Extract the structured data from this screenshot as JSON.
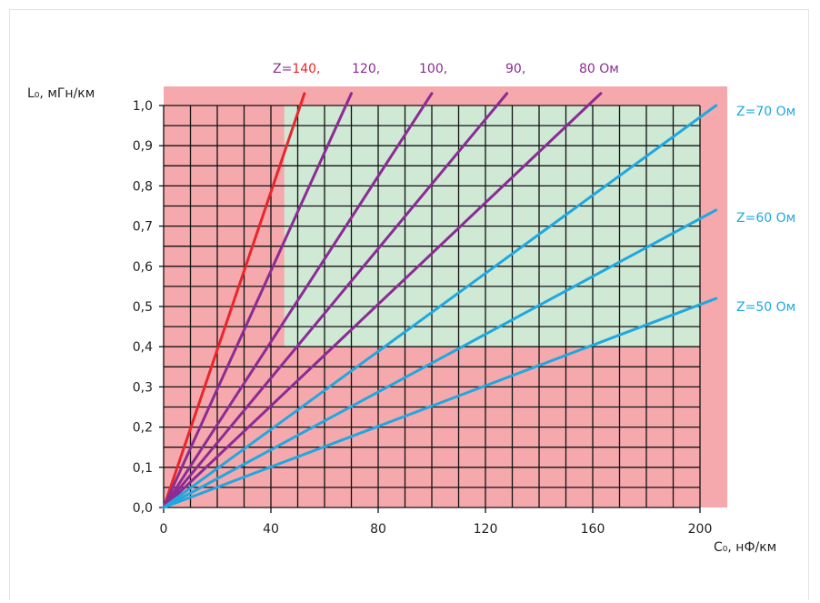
{
  "chart_data": {
    "type": "line",
    "title": "",
    "xlabel": "C₀, нФ/км",
    "ylabel": "L₀, мГн/км",
    "xlim": [
      0,
      210
    ],
    "ylim": [
      0,
      1.0
    ],
    "x_ticks": [
      {
        "value": 0,
        "label": "0"
      },
      {
        "value": 40,
        "label": "40"
      },
      {
        "value": 80,
        "label": "80"
      },
      {
        "value": 120,
        "label": "120"
      },
      {
        "value": 160,
        "label": "160"
      },
      {
        "value": 200,
        "label": "200"
      }
    ],
    "y_ticks": [
      {
        "value": 0.0,
        "label": "0,0"
      },
      {
        "value": 0.1,
        "label": "0,1"
      },
      {
        "value": 0.2,
        "label": "0,2"
      },
      {
        "value": 0.3,
        "label": "0,3"
      },
      {
        "value": 0.4,
        "label": "0,4"
      },
      {
        "value": 0.5,
        "label": "0,5"
      },
      {
        "value": 0.6,
        "label": "0,6"
      },
      {
        "value": 0.7,
        "label": "0,7"
      },
      {
        "value": 0.8,
        "label": "0,8"
      },
      {
        "value": 0.9,
        "label": "0,9"
      },
      {
        "value": 1.0,
        "label": "1,0"
      }
    ],
    "grid": true,
    "grid_step": {
      "x": 10,
      "y": 0.05
    },
    "background_color": "#f6a9ad",
    "highlight_region": {
      "x": [
        45,
        200
      ],
      "y": [
        0.4,
        1.0
      ],
      "color": "#cfe9d5"
    },
    "series": [
      {
        "name": "Z=140,",
        "x": [
          0,
          52.5
        ],
        "y": [
          0,
          1.03
        ],
        "color": "#e8262c",
        "label_parts": [
          {
            "text": "Z=",
            "color": "#8b2c94"
          },
          {
            "text": "140,",
            "color": "#e8262c"
          }
        ]
      },
      {
        "name": "120,",
        "x": [
          0,
          70
        ],
        "y": [
          0,
          1.03
        ],
        "color": "#8b2c94",
        "label_parts": [
          {
            "text": "120,",
            "color": "#8b2c94"
          }
        ]
      },
      {
        "name": "100,",
        "x": [
          0,
          100
        ],
        "y": [
          0,
          1.03
        ],
        "color": "#8b2c94",
        "label_parts": [
          {
            "text": "100,",
            "color": "#8b2c94"
          }
        ]
      },
      {
        "name": "90,",
        "x": [
          0,
          128
        ],
        "y": [
          0,
          1.03
        ],
        "color": "#8b2c94",
        "label_parts": [
          {
            "text": "90,",
            "color": "#8b2c94"
          }
        ]
      },
      {
        "name": "80 Ом",
        "x": [
          0,
          163
        ],
        "y": [
          0,
          1.03
        ],
        "color": "#8b2c94",
        "label_parts": [
          {
            "text": "80 Ом",
            "color": "#8b2c94"
          }
        ]
      },
      {
        "name": "Z=70 Ом",
        "x": [
          0,
          206
        ],
        "y": [
          0,
          1.0
        ],
        "color": "#1fa8e0",
        "label_parts": [
          {
            "text": "Z=70 Ом",
            "color": "#1fa8e0"
          }
        ]
      },
      {
        "name": "Z=60 Ом",
        "x": [
          0,
          206
        ],
        "y": [
          0,
          0.74
        ],
        "color": "#1fa8e0",
        "label_parts": [
          {
            "text": "Z=60 Ом",
            "color": "#1fa8e0"
          }
        ]
      },
      {
        "name": "Z=50 Ом",
        "x": [
          0,
          206
        ],
        "y": [
          0,
          0.52
        ],
        "color": "#1fa8e0",
        "label_parts": [
          {
            "text": "Z=50 Ом",
            "color": "#1fa8e0"
          }
        ]
      }
    ]
  }
}
